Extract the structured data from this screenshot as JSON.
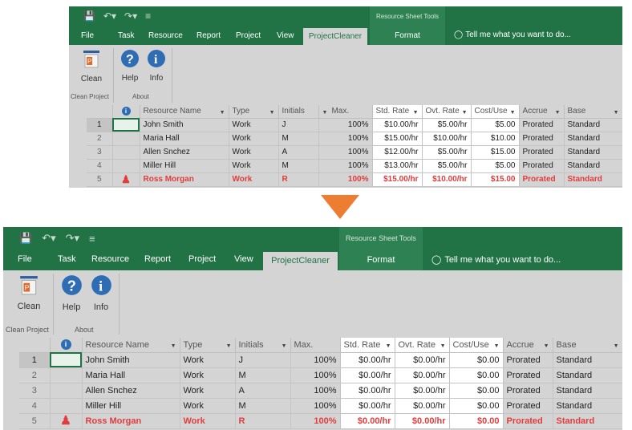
{
  "colors": {
    "ribbon_green": "#217346",
    "overalloc_red": "#e23c3c",
    "arrow_orange": "#ed7d31"
  },
  "qat": {
    "save_icon": "save-icon",
    "undo_icon": "undo-icon",
    "redo_icon": "redo-icon",
    "customize_icon": "customize-qat-icon"
  },
  "context_group": "Resource Sheet Tools",
  "tabs": [
    "File",
    "Task",
    "Resource",
    "Report",
    "Project",
    "View",
    "ProjectCleaner",
    "Format"
  ],
  "active_tab": "ProjectCleaner",
  "tell_me": "Tell me what you want to do...",
  "ribbon": {
    "clean_label": "Clean",
    "help_label": "Help",
    "info_label": "Info",
    "group_clean_project": "Clean Project",
    "group_about": "About"
  },
  "columns": [
    "Resource Name",
    "Type",
    "Initials",
    "Max.",
    "Std. Rate",
    "Ovt. Rate",
    "Cost/Use",
    "Accrue",
    "Base"
  ],
  "before": {
    "rows": [
      {
        "num": "1",
        "name": "John Smith",
        "type": "Work",
        "initials": "J",
        "max": "100%",
        "std": "$10.00/hr",
        "ovt": "$5.00/hr",
        "cost": "$5.00",
        "accrue": "Prorated",
        "base": "Standard"
      },
      {
        "num": "2",
        "name": "Maria Hall",
        "type": "Work",
        "initials": "M",
        "max": "100%",
        "std": "$15.00/hr",
        "ovt": "$10.00/hr",
        "cost": "$10.00",
        "accrue": "Prorated",
        "base": "Standard"
      },
      {
        "num": "3",
        "name": "Allen Snchez",
        "type": "Work",
        "initials": "A",
        "max": "100%",
        "std": "$12.00/hr",
        "ovt": "$5.00/hr",
        "cost": "$15.00",
        "accrue": "Prorated",
        "base": "Standard"
      },
      {
        "num": "4",
        "name": "Miller Hill",
        "type": "Work",
        "initials": "M",
        "max": "100%",
        "std": "$13.00/hr",
        "ovt": "$5.00/hr",
        "cost": "$5.00",
        "accrue": "Prorated",
        "base": "Standard"
      },
      {
        "num": "5",
        "name": "Ross Morgan",
        "type": "Work",
        "initials": "R",
        "max": "100%",
        "std": "$15.00/hr",
        "ovt": "$10.00/hr",
        "cost": "$15.00",
        "accrue": "Prorated",
        "base": "Standard"
      }
    ]
  },
  "after": {
    "rows": [
      {
        "num": "1",
        "name": "John Smith",
        "type": "Work",
        "initials": "J",
        "max": "100%",
        "std": "$0.00/hr",
        "ovt": "$0.00/hr",
        "cost": "$0.00",
        "accrue": "Prorated",
        "base": "Standard"
      },
      {
        "num": "2",
        "name": "Maria Hall",
        "type": "Work",
        "initials": "M",
        "max": "100%",
        "std": "$0.00/hr",
        "ovt": "$0.00/hr",
        "cost": "$0.00",
        "accrue": "Prorated",
        "base": "Standard"
      },
      {
        "num": "3",
        "name": "Allen Snchez",
        "type": "Work",
        "initials": "A",
        "max": "100%",
        "std": "$0.00/hr",
        "ovt": "$0.00/hr",
        "cost": "$0.00",
        "accrue": "Prorated",
        "base": "Standard"
      },
      {
        "num": "4",
        "name": "Miller Hill",
        "type": "Work",
        "initials": "M",
        "max": "100%",
        "std": "$0.00/hr",
        "ovt": "$0.00/hr",
        "cost": "$0.00",
        "accrue": "Prorated",
        "base": "Standard"
      },
      {
        "num": "5",
        "name": "Ross Morgan",
        "type": "Work",
        "initials": "R",
        "max": "100%",
        "std": "$0.00/hr",
        "ovt": "$0.00/hr",
        "cost": "$0.00",
        "accrue": "Prorated",
        "base": "Standard"
      }
    ]
  }
}
